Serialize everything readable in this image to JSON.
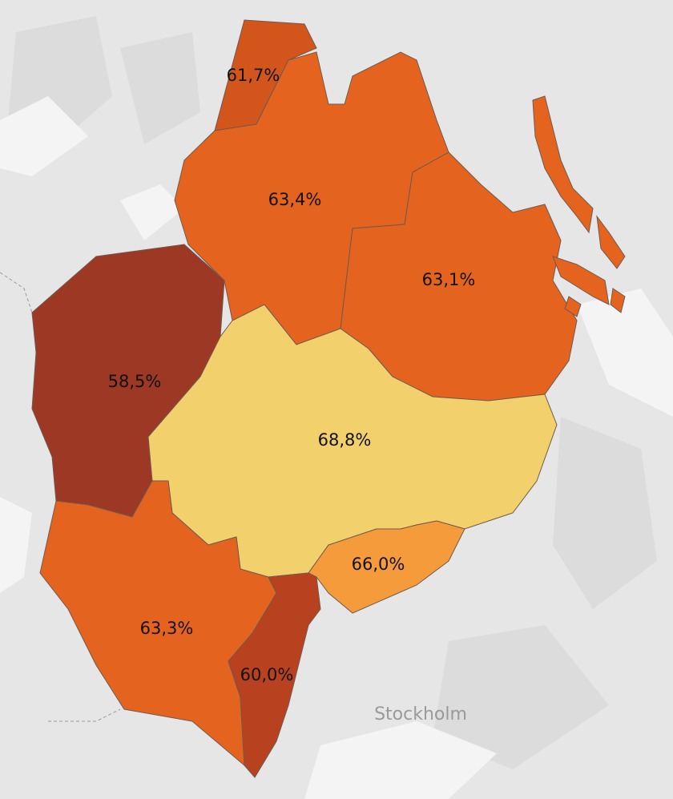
{
  "map": {
    "regions": [
      {
        "value": 61.7,
        "label": "61,7%",
        "color": "#d2561c"
      },
      {
        "value": 63.4,
        "label": "63,4%",
        "color": "#e4641f"
      },
      {
        "value": 63.1,
        "label": "63,1%",
        "color": "#e4641f"
      },
      {
        "value": 58.5,
        "label": "58,5%",
        "color": "#9c3823"
      },
      {
        "value": 68.8,
        "label": "68,8%",
        "color": "#f2d06b"
      },
      {
        "value": 66.0,
        "label": "66,0%",
        "color": "#f59b3b"
      },
      {
        "value": 63.3,
        "label": "63,3%",
        "color": "#e4641f"
      },
      {
        "value": 60.0,
        "label": "60,0%",
        "color": "#b8421f"
      }
    ],
    "places": [
      "Stockholm"
    ]
  }
}
